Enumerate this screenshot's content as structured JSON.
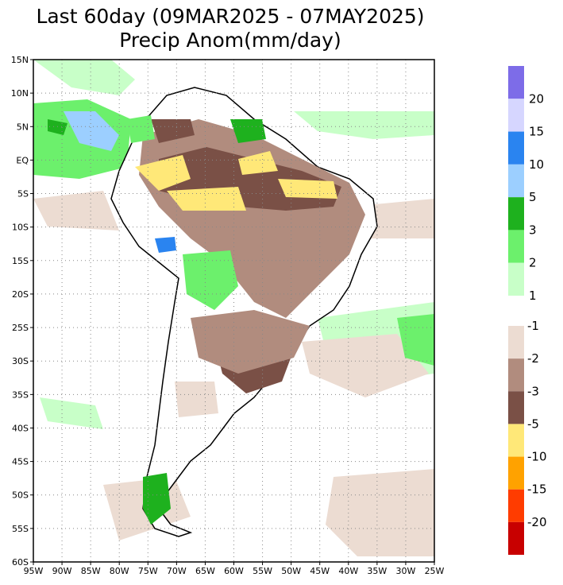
{
  "title_line1": "Last 60day (09MAR2025 - 07MAY2025)",
  "title_line2": "Precip Anom(mm/day)",
  "lat_labels": [
    "15N",
    "10N",
    "5N",
    "EQ",
    "5S",
    "10S",
    "15S",
    "20S",
    "25S",
    "30S",
    "35S",
    "40S",
    "45S",
    "50S",
    "55S",
    "60S"
  ],
  "lon_labels": [
    "95W",
    "90W",
    "85W",
    "80W",
    "75W",
    "70W",
    "65W",
    "60W",
    "55W",
    "50W",
    "45W",
    "40W",
    "35W",
    "30W",
    "25W"
  ],
  "colorbar_positive": {
    "colors": [
      "#7d6ce8",
      "#d6d6ff",
      "#2a84f0",
      "#9ccfff",
      "#1eb11e",
      "#6cf06c",
      "#c8ffc8"
    ],
    "labels": [
      "20",
      "15",
      "10",
      "5",
      "3",
      "2",
      "1"
    ]
  },
  "colorbar_negative": {
    "colors": [
      "#ecdcd2",
      "#b18c7e",
      "#7a5046",
      "#ffe878",
      "#ffa200",
      "#ff3c00",
      "#c80000"
    ],
    "labels": [
      "-1",
      "-2",
      "-3",
      "-5",
      "-10",
      "-15",
      "-20"
    ]
  }
}
